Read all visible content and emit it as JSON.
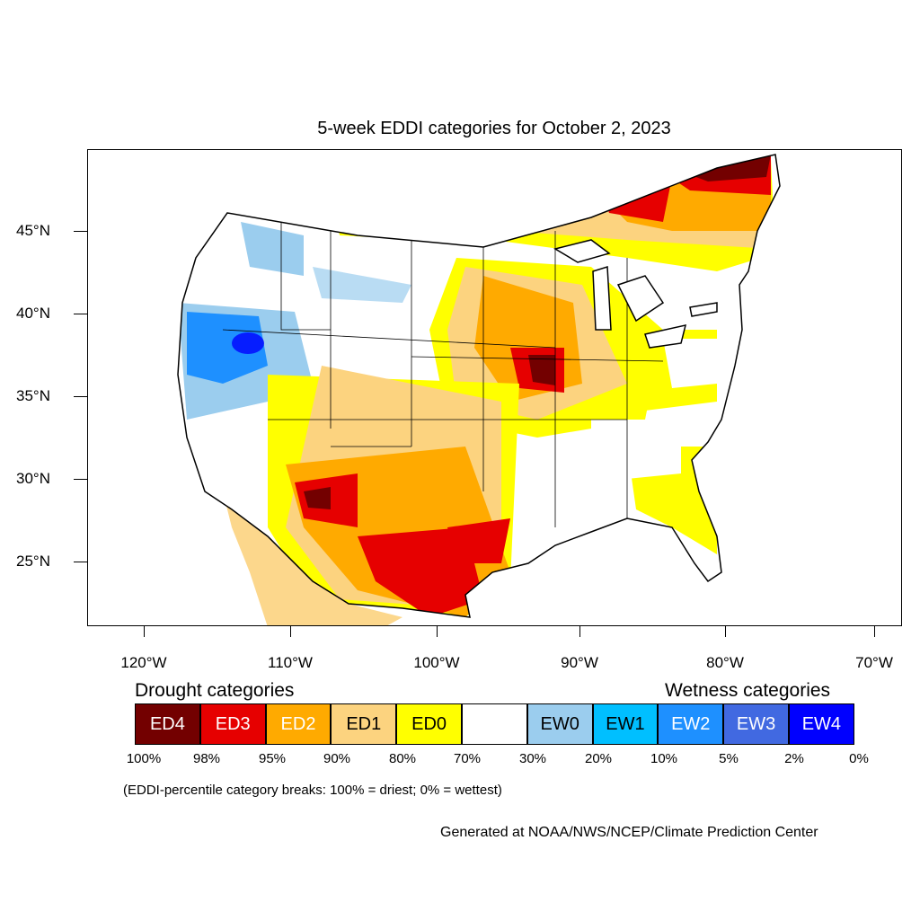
{
  "title": "5-week EDDI categories for October 2, 2023",
  "lat_labels": [
    "45°N",
    "40°N",
    "35°N",
    "30°N",
    "25°N"
  ],
  "lon_labels": [
    "120°W",
    "110°W",
    "100°W",
    "90°W",
    "80°W",
    "70°W"
  ],
  "legend": {
    "drought_heading": "Drought categories",
    "wetness_heading": "Wetness categories",
    "categories": [
      {
        "label": "ED4",
        "color": "#730000",
        "text_color": "#ffffff"
      },
      {
        "label": "ED3",
        "color": "#e60000",
        "text_color": "#ffffff"
      },
      {
        "label": "ED2",
        "color": "#ffaa00",
        "text_color": "#ffffff"
      },
      {
        "label": "ED1",
        "color": "#fcd37f",
        "text_color": "#000000"
      },
      {
        "label": "ED0",
        "color": "#ffff00",
        "text_color": "#000000"
      },
      {
        "label": "",
        "color": "#ffffff",
        "text_color": "#000000"
      },
      {
        "label": "EW0",
        "color": "#9bcdee",
        "text_color": "#000000"
      },
      {
        "label": "EW1",
        "color": "#00bfff",
        "text_color": "#000000"
      },
      {
        "label": "EW2",
        "color": "#1e90ff",
        "text_color": "#ffffff"
      },
      {
        "label": "EW3",
        "color": "#4169e1",
        "text_color": "#ffffff"
      },
      {
        "label": "EW4",
        "color": "#0000ff",
        "text_color": "#ffffff"
      }
    ],
    "breaks": [
      "100%",
      "98%",
      "95%",
      "90%",
      "80%",
      "70%",
      "30%",
      "20%",
      "10%",
      "5%",
      "2%",
      "0%"
    ]
  },
  "note": "(EDDI-percentile category breaks: 100% = driest; 0% = wettest)",
  "credit": "Generated at NOAA/NWS/NCEP/Climate Prediction Center"
}
